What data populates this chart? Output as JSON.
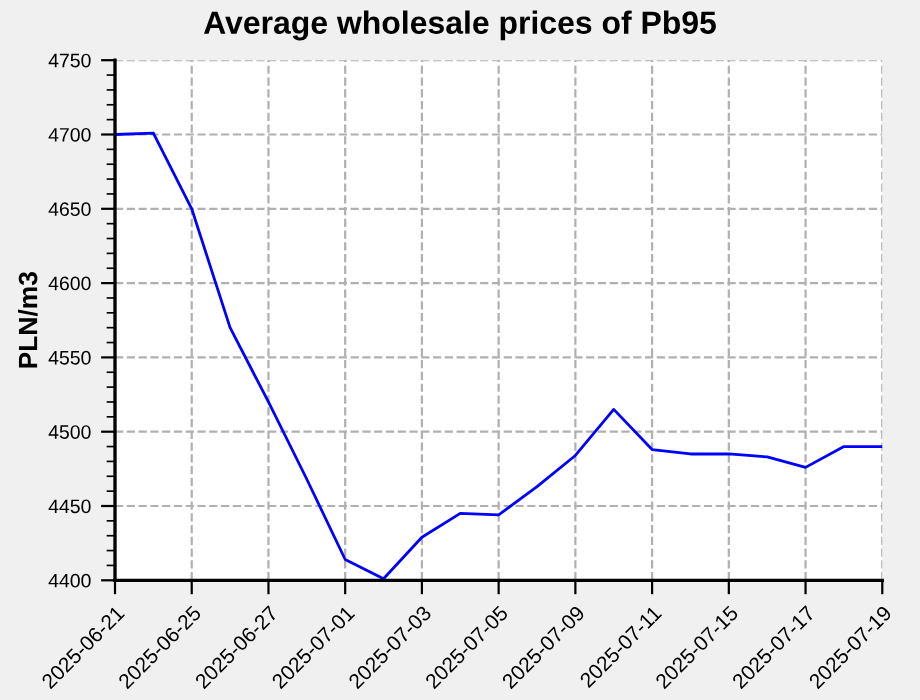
{
  "chart_data": {
    "type": "line",
    "title": "Average wholesale prices of Pb95",
    "ylabel": "PLN/m3",
    "categories": [
      "2025-06-21",
      null,
      "2025-06-25",
      null,
      "2025-06-27",
      null,
      "2025-07-01",
      null,
      "2025-07-03",
      null,
      "2025-07-05",
      null,
      "2025-07-09",
      null,
      "2025-07-11",
      null,
      "2025-07-15",
      null,
      "2025-07-17",
      null,
      "2025-07-19"
    ],
    "series": [
      {
        "color": "#0000ff",
        "values": [
          4700,
          4701,
          4650,
          4570,
          4520,
          4468,
          4414,
          4401,
          4429,
          4445,
          4444,
          4463,
          4484,
          4515,
          4488,
          4485,
          4485,
          4483,
          4476,
          4490,
          4490
        ]
      }
    ],
    "ylim": [
      4400,
      4750
    ],
    "yticks": [
      4400,
      {
        "value": 4410,
        "label": null
      },
      {
        "value": 4420,
        "label": null
      },
      {
        "value": 4430,
        "label": null
      },
      {
        "value": 4440,
        "label": null
      },
      4450,
      {
        "value": 4460,
        "label": null
      },
      {
        "value": 4470,
        "label": null
      },
      {
        "value": 4480,
        "label": null
      },
      {
        "value": 4490,
        "label": null
      },
      4500,
      {
        "value": 4510,
        "label": null
      },
      {
        "value": 4520,
        "label": null
      },
      {
        "value": 4530,
        "label": null
      },
      {
        "value": 4540,
        "label": null
      },
      4550,
      {
        "value": 4560,
        "label": null
      },
      {
        "value": 4570,
        "label": null
      },
      {
        "value": 4580,
        "label": null
      },
      {
        "value": 4590,
        "label": null
      },
      4600,
      {
        "value": 4610,
        "label": null
      },
      {
        "value": 4620,
        "label": null
      },
      {
        "value": 4630,
        "label": null
      },
      {
        "value": 4640,
        "label": null
      },
      4650,
      {
        "value": 4660,
        "label": null
      },
      {
        "value": 4670,
        "label": null
      },
      {
        "value": 4680,
        "label": null
      },
      {
        "value": 4690,
        "label": null
      },
      4700,
      {
        "value": 4710,
        "label": null
      },
      {
        "value": 4720,
        "label": null
      },
      {
        "value": 4730,
        "label": null
      },
      {
        "value": 4740,
        "label": null
      },
      4750
    ],
    "grid": true,
    "marker": "none",
    "line_style": "solid",
    "legend": false
  }
}
